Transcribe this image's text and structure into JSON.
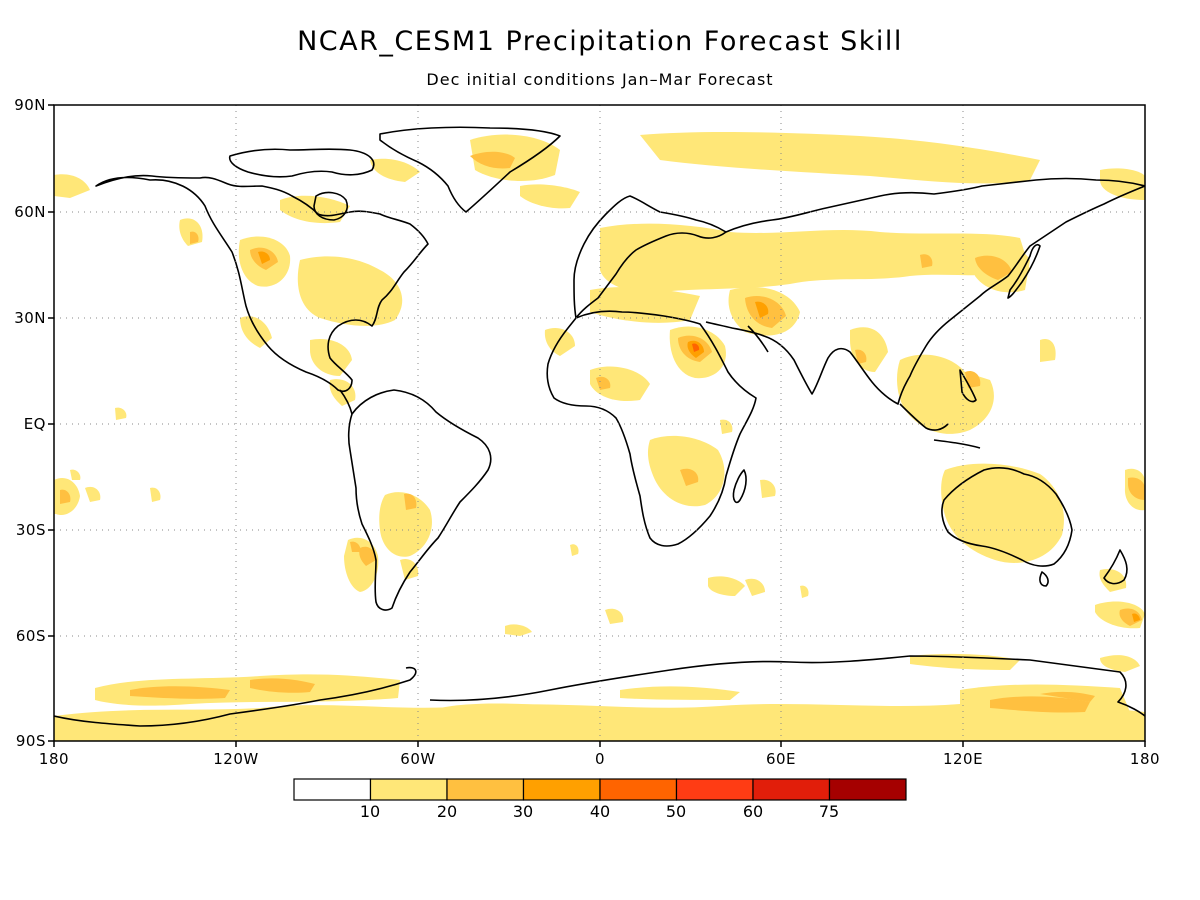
{
  "title": "NCAR_CESM1 Precipitation Forecast Skill",
  "subtitle": "Dec initial conditions  Jan–Mar Forecast",
  "lat_labels": [
    "90N",
    "60N",
    "30N",
    "EQ",
    "30S",
    "60S",
    "90S"
  ],
  "lon_labels": [
    "180",
    "120W",
    "60W",
    "0",
    "60E",
    "120E",
    "180"
  ],
  "colorbar": {
    "labels": [
      "10",
      "20",
      "30",
      "40",
      "50",
      "60",
      "75"
    ],
    "colors": [
      "#ffffff",
      "#ffe778",
      "#ffc040",
      "#ffa000",
      "#ff6400",
      "#ff3c14",
      "#e11e0a",
      "#a50000"
    ]
  },
  "map_colors": {
    "land_outline": "#000000",
    "grid": "#888888",
    "skill_10": "#ffe778",
    "skill_20": "#ffc040",
    "skill_30": "#ffa000",
    "skill_40": "#ff6400"
  }
}
